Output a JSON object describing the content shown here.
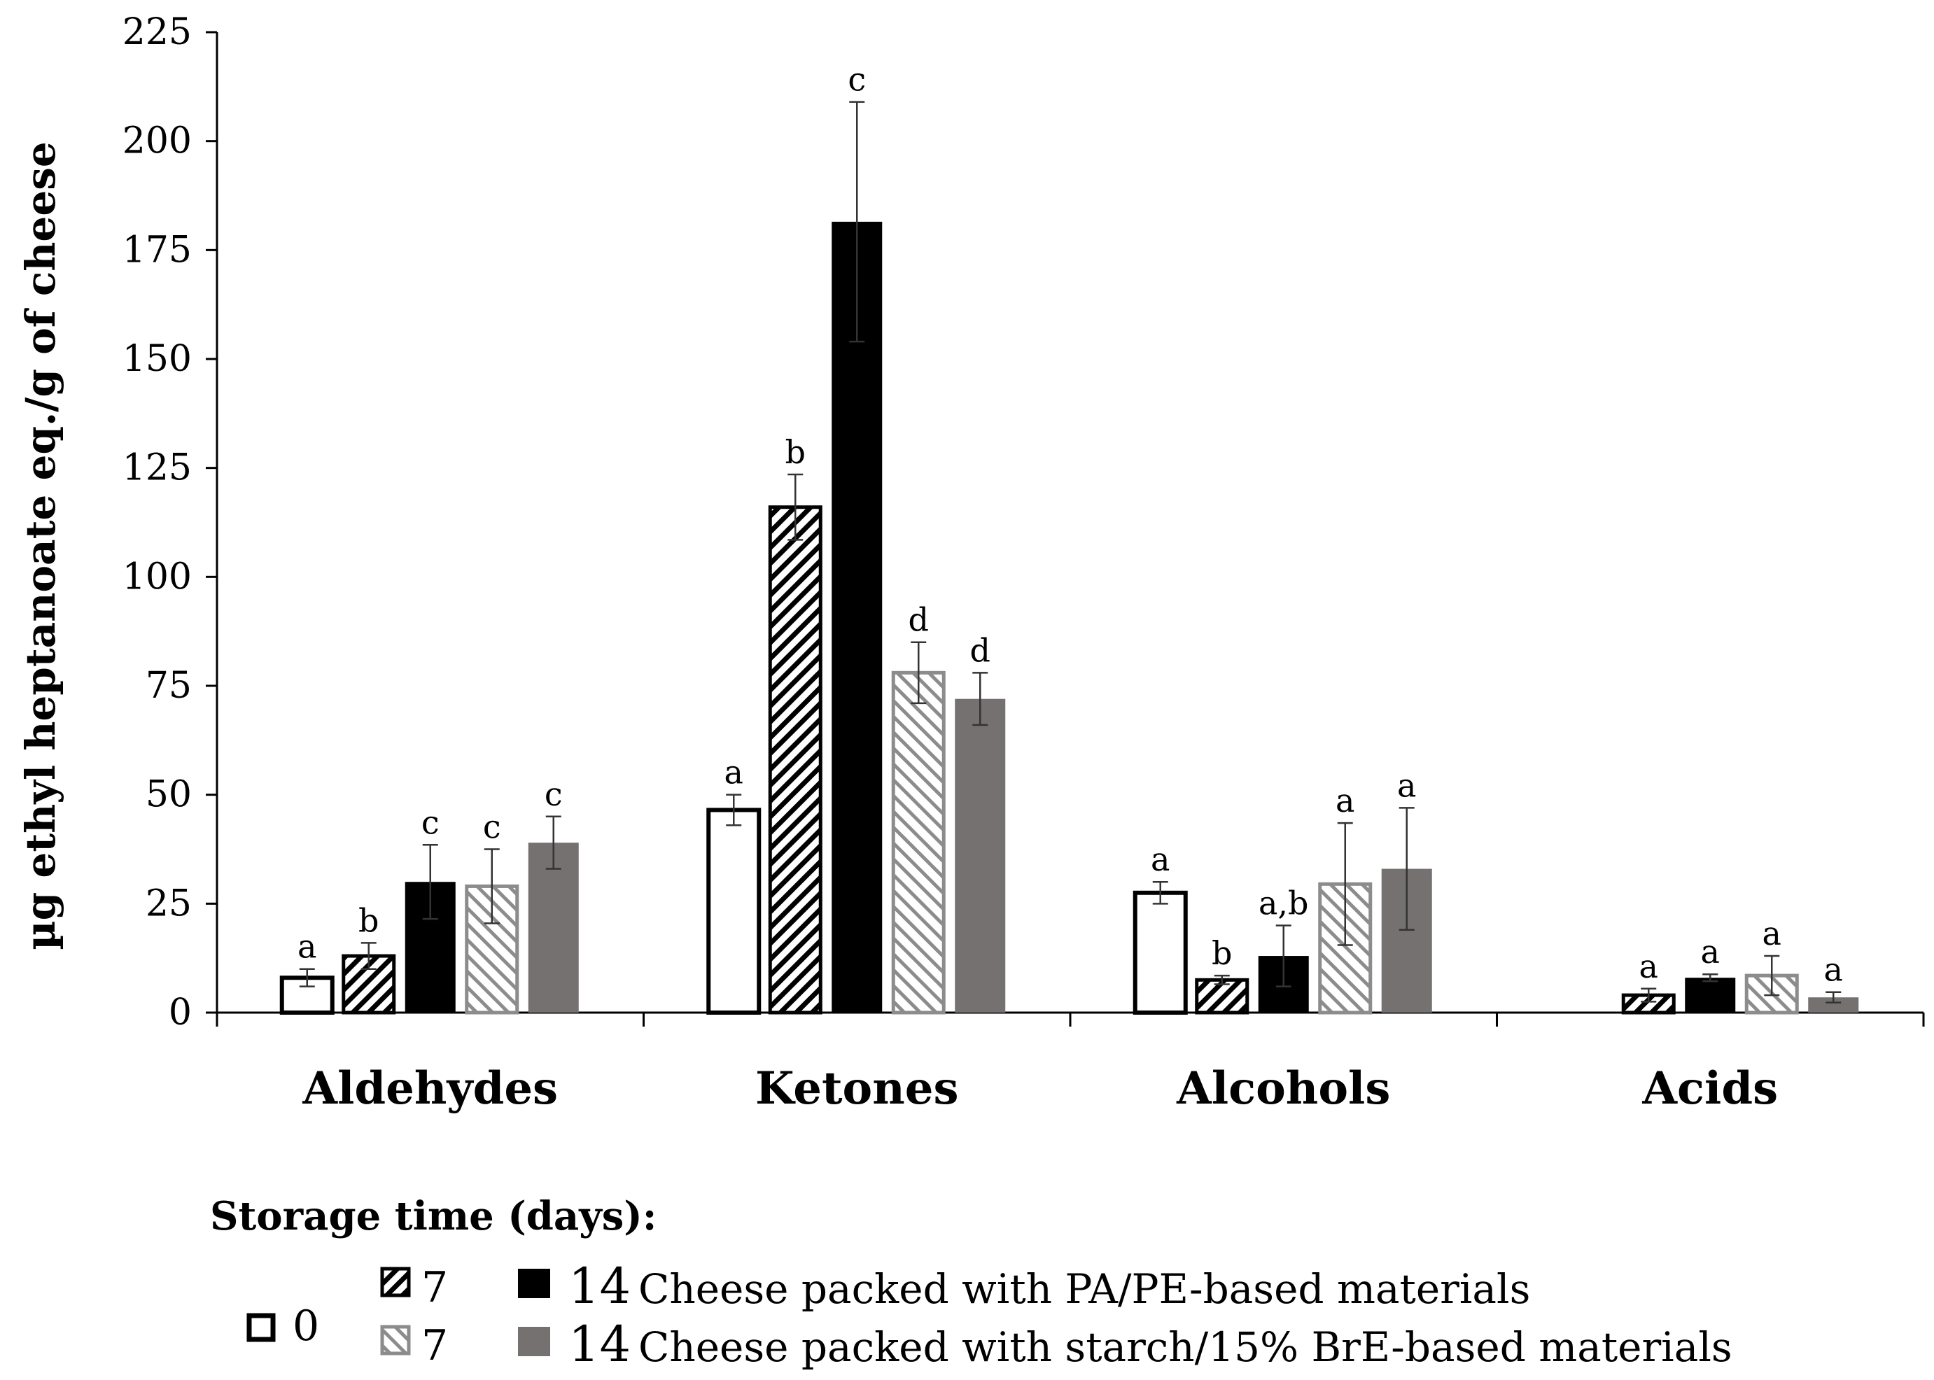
{
  "chart_data": {
    "type": "bar",
    "title": "",
    "xlabel": "",
    "ylabel": "µg ethyl heptanoate eq./g of cheese",
    "ylim": [
      0,
      225
    ],
    "yticks": [
      "0",
      "25",
      "50",
      "75",
      "100",
      "125",
      "150",
      "175",
      "200",
      "225"
    ],
    "categories": [
      "Aldehydes",
      "Ketones",
      "Alcohols",
      "Acids"
    ],
    "series": [
      {
        "name": "0",
        "style": "open",
        "color": "#ffffff",
        "values": [
          8,
          46.5,
          27.5,
          null
        ],
        "errors": [
          2,
          3.5,
          2.5,
          null
        ],
        "letters": [
          "a",
          "a",
          "a",
          null
        ]
      },
      {
        "name": "7 PA/PE",
        "style": "hatch-dense",
        "color": "#000000",
        "values": [
          13,
          116,
          7.5,
          4
        ],
        "errors": [
          3,
          7.5,
          1,
          1.5
        ],
        "letters": [
          "b",
          "b",
          "b",
          "a"
        ]
      },
      {
        "name": "14 PA/PE",
        "style": "solid",
        "color": "#000000",
        "values": [
          30,
          181.5,
          13,
          8
        ],
        "errors": [
          8.5,
          27.5,
          7,
          0.8
        ],
        "letters": [
          "c",
          "c",
          "a,b",
          "a"
        ]
      },
      {
        "name": "7 starch/15% BrE",
        "style": "hatch-light",
        "color": "#8c8c8c",
        "values": [
          29,
          78,
          29.5,
          8.5
        ],
        "errors": [
          8.5,
          7,
          14,
          4.5
        ],
        "letters": [
          "c",
          "d",
          "a",
          "a"
        ]
      },
      {
        "name": "14 starch/15% BrE",
        "style": "solid",
        "color": "#767171",
        "values": [
          39,
          72,
          33,
          3.5
        ],
        "errors": [
          6,
          6,
          14,
          1.2
        ],
        "letters": [
          "c",
          "d",
          "a",
          "a"
        ]
      }
    ],
    "legend": {
      "title": "Storage time (days):",
      "day0": "0",
      "row1": {
        "day7": "7",
        "day14": "14",
        "label": "Cheese packed with PA/PE-based materials"
      },
      "row2": {
        "day7": "7",
        "day14": "14",
        "label": "Cheese packed with starch/15% BrE-based materials"
      }
    }
  }
}
